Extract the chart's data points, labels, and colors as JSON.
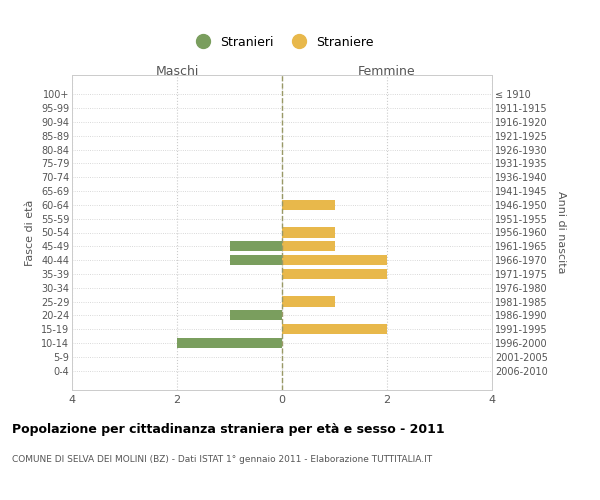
{
  "age_groups": [
    "0-4",
    "5-9",
    "10-14",
    "15-19",
    "20-24",
    "25-29",
    "30-34",
    "35-39",
    "40-44",
    "45-49",
    "50-54",
    "55-59",
    "60-64",
    "65-69",
    "70-74",
    "75-79",
    "80-84",
    "85-89",
    "90-94",
    "95-99",
    "100+"
  ],
  "birth_years": [
    "2006-2010",
    "2001-2005",
    "1996-2000",
    "1991-1995",
    "1986-1990",
    "1981-1985",
    "1976-1980",
    "1971-1975",
    "1966-1970",
    "1961-1965",
    "1956-1960",
    "1951-1955",
    "1946-1950",
    "1941-1945",
    "1936-1940",
    "1931-1935",
    "1926-1930",
    "1921-1925",
    "1916-1920",
    "1911-1915",
    "≤ 1910"
  ],
  "males": [
    0,
    0,
    -2,
    0,
    -1,
    0,
    0,
    0,
    -1,
    -1,
    0,
    0,
    0,
    0,
    0,
    0,
    0,
    0,
    0,
    0,
    0
  ],
  "females": [
    0,
    0,
    0,
    2,
    0,
    1,
    0,
    2,
    2,
    1,
    1,
    0,
    1,
    0,
    0,
    0,
    0,
    0,
    0,
    0,
    0
  ],
  "color_male": "#7a9e5e",
  "color_female": "#e8b84b",
  "title": "Popolazione per cittadinanza straniera per età e sesso - 2011",
  "subtitle": "COMUNE DI SELVA DEI MOLINI (BZ) - Dati ISTAT 1° gennaio 2011 - Elaborazione TUTTITALIA.IT",
  "legend_male": "Stranieri",
  "legend_female": "Straniere",
  "header_left": "Maschi",
  "header_right": "Femmine",
  "ylabel_left": "Fasce di età",
  "ylabel_right": "Anni di nascita",
  "xlim": [
    -4,
    4
  ],
  "xticks": [
    -4,
    -2,
    0,
    2,
    4
  ],
  "xticklabels": [
    "4",
    "2",
    "0",
    "2",
    "4"
  ],
  "bar_height": 0.75,
  "bg_color": "#ffffff",
  "grid_color": "#cccccc",
  "spine_color": "#cccccc",
  "zero_line_color": "#999966",
  "text_color": "#555555"
}
